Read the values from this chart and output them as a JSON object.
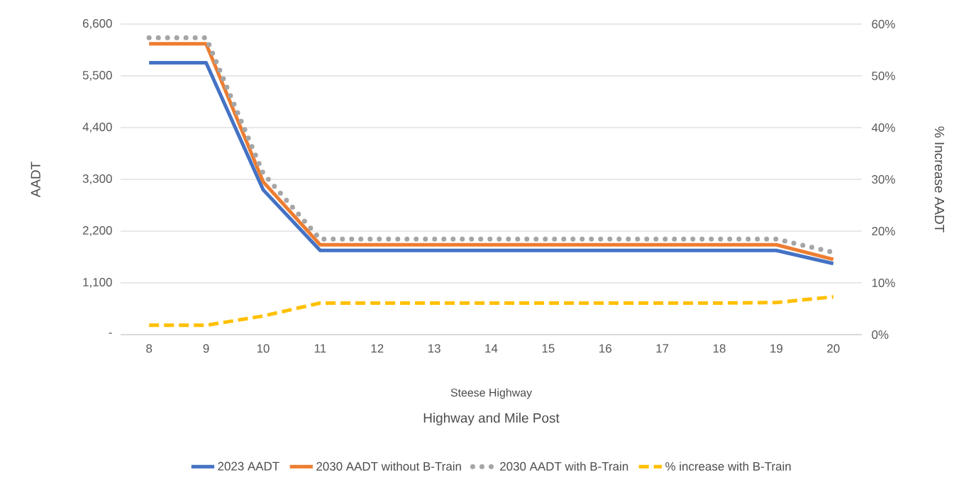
{
  "chart_data": {
    "type": "line",
    "categories": [
      "8",
      "9",
      "10",
      "11",
      "12",
      "13",
      "14",
      "15",
      "16",
      "17",
      "18",
      "19",
      "20"
    ],
    "xlabel": "Highway and Mile Post",
    "ylabel": "AADT",
    "y2label": "% Increase AADT",
    "annotations": [
      "Steese Highway"
    ],
    "ylim": [
      0,
      6600
    ],
    "yticks": [
      {
        "value": 0,
        "label": "-"
      },
      {
        "value": 1100,
        "label": "1,100"
      },
      {
        "value": 2200,
        "label": "2,200"
      },
      {
        "value": 3300,
        "label": "3,300"
      },
      {
        "value": 4400,
        "label": "4,400"
      },
      {
        "value": 5500,
        "label": "5,500"
      },
      {
        "value": 6600,
        "label": "6,600"
      }
    ],
    "y2lim": [
      0,
      60
    ],
    "y2ticks": [
      {
        "value": 0,
        "label": "0%"
      },
      {
        "value": 10,
        "label": "10%"
      },
      {
        "value": 20,
        "label": "20%"
      },
      {
        "value": 30,
        "label": "30%"
      },
      {
        "value": 40,
        "label": "40%"
      },
      {
        "value": 50,
        "label": "50%"
      },
      {
        "value": 60,
        "label": "60%"
      }
    ],
    "grid": "y",
    "legend": "bottom",
    "marker": "none",
    "series": [
      {
        "name": "2023 AADT",
        "color": "#4472c4",
        "line_style": "solid",
        "values": [
          5780,
          5780,
          3080,
          1790,
          1790,
          1790,
          1790,
          1790,
          1790,
          1790,
          1790,
          1790,
          1510
        ]
      },
      {
        "name": "2030 AADT without B-Train",
        "color": "#ed7d31",
        "line_style": "solid",
        "values": [
          6180,
          6180,
          3250,
          1910,
          1910,
          1910,
          1910,
          1910,
          1910,
          1910,
          1910,
          1910,
          1600
        ]
      },
      {
        "name": "2030 AADT with B-Train",
        "color": "#a5a5a5",
        "line_style": "dotted",
        "values": [
          6310,
          6310,
          3430,
          2030,
          2030,
          2030,
          2030,
          2030,
          2030,
          2030,
          2030,
          2030,
          1750
        ]
      },
      {
        "name": "% increase with B-Train",
        "color": "#ffc000",
        "line_style": "dashed",
        "axis": "y2",
        "values": [
          1.8,
          1.8,
          3.6,
          6.1,
          6.1,
          6.1,
          6.1,
          6.1,
          6.1,
          6.1,
          6.1,
          6.2,
          7.3
        ]
      }
    ]
  }
}
